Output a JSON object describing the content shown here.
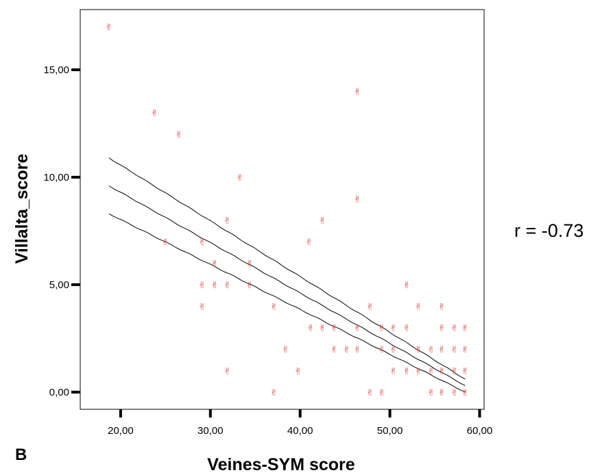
{
  "chart_data": {
    "type": "scatter",
    "xlabel": "Veines-SYM score",
    "ylabel": "Villalta_score",
    "xlim": [
      15.5,
      60.5
    ],
    "ylim": [
      -0.8,
      17.8
    ],
    "xticks": [
      {
        "value": 20,
        "label": "20,00"
      },
      {
        "value": 30,
        "label": "30,00"
      },
      {
        "value": 40,
        "label": "40,00"
      },
      {
        "value": 50,
        "label": "50,00"
      },
      {
        "value": 60,
        "label": "60,00"
      }
    ],
    "yticks": [
      {
        "value": 0,
        "label": "0,00"
      },
      {
        "value": 5,
        "label": "5,00"
      },
      {
        "value": 10,
        "label": "10,00"
      },
      {
        "value": 15,
        "label": "15,00"
      }
    ],
    "grid": false,
    "marker_glyph": "✌",
    "marker_color": "#e03a3a",
    "line_color": "#000000",
    "points": [
      [
        18.7,
        17
      ],
      [
        23.8,
        13
      ],
      [
        26.5,
        12
      ],
      [
        46.4,
        14
      ],
      [
        46.4,
        9
      ],
      [
        33.3,
        10
      ],
      [
        25.0,
        7
      ],
      [
        29.1,
        7
      ],
      [
        31.9,
        8
      ],
      [
        41.0,
        7
      ],
      [
        42.5,
        8
      ],
      [
        30.5,
        6
      ],
      [
        34.4,
        6
      ],
      [
        29.1,
        5
      ],
      [
        30.5,
        5
      ],
      [
        31.9,
        5
      ],
      [
        34.4,
        5
      ],
      [
        51.9,
        5
      ],
      [
        29.1,
        4
      ],
      [
        37.1,
        4
      ],
      [
        47.8,
        4
      ],
      [
        53.2,
        4
      ],
      [
        55.8,
        4
      ],
      [
        41.2,
        3
      ],
      [
        42.5,
        3
      ],
      [
        43.8,
        3
      ],
      [
        46.4,
        3
      ],
      [
        49.1,
        3
      ],
      [
        50.4,
        3
      ],
      [
        51.9,
        3
      ],
      [
        55.8,
        3
      ],
      [
        57.2,
        3
      ],
      [
        58.4,
        3
      ],
      [
        38.4,
        2
      ],
      [
        43.8,
        2
      ],
      [
        45.2,
        2
      ],
      [
        46.4,
        2
      ],
      [
        49.1,
        2
      ],
      [
        50.4,
        2
      ],
      [
        53.2,
        2
      ],
      [
        54.6,
        2
      ],
      [
        55.8,
        2
      ],
      [
        57.2,
        2
      ],
      [
        58.4,
        2
      ],
      [
        31.9,
        1
      ],
      [
        39.8,
        1
      ],
      [
        50.4,
        1
      ],
      [
        51.9,
        1
      ],
      [
        53.2,
        1
      ],
      [
        54.6,
        1
      ],
      [
        55.8,
        1
      ],
      [
        57.2,
        1
      ],
      [
        58.4,
        1
      ],
      [
        37.1,
        0
      ],
      [
        47.8,
        0
      ],
      [
        49.1,
        0
      ],
      [
        54.6,
        0
      ],
      [
        55.8,
        0
      ],
      [
        57.2,
        0
      ],
      [
        58.4,
        0
      ]
    ],
    "fit_line": {
      "center": [
        [
          18.7,
          9.6
        ],
        [
          58.4,
          0.3
        ]
      ],
      "upper": [
        [
          18.7,
          10.9
        ],
        [
          58.4,
          0.6
        ]
      ],
      "lower": [
        [
          18.7,
          8.3
        ],
        [
          58.4,
          0.0
        ]
      ]
    },
    "annotation": "r = -0.73",
    "panel_label": "B"
  }
}
